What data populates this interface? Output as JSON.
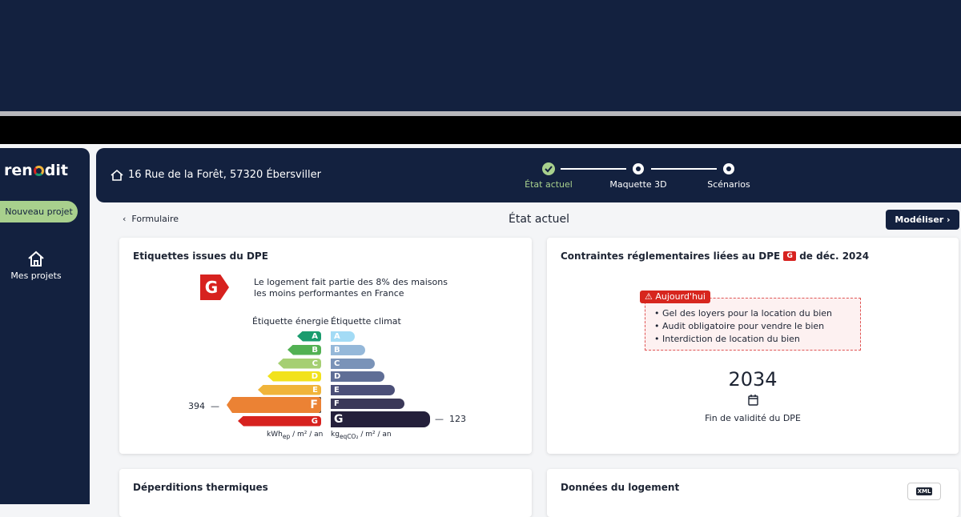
{
  "sidebar": {
    "logo": {
      "prefix": "ren",
      "suffix": "dit"
    },
    "new_project": "Nouveau projet",
    "my_projects": "Mes projets"
  },
  "header": {
    "address": "16 Rue de la Forêt, 57320 Ébersviller",
    "steps": [
      "État actuel",
      "Maquette 3D",
      "Scénarios"
    ]
  },
  "toolbar": {
    "back": "Formulaire",
    "title": "État actuel",
    "button": "Modéliser"
  },
  "dpe_card": {
    "title": "Etiquettes issues du DPE",
    "badge": "G",
    "text": "Le logement fait partie des 8% des maisons les moins performantes en France",
    "energy": {
      "heading": "Étiquette énergie",
      "labels": [
        "A",
        "B",
        "C",
        "D",
        "E",
        "F",
        "G"
      ],
      "colors": [
        "#1a9c6e",
        "#52b153",
        "#a5cf73",
        "#f2e21c",
        "#f0b43a",
        "#eb8234",
        "#d7221f"
      ],
      "highlight": "F",
      "value": "394",
      "unit": {
        "main": "kWh",
        "sub": "ep",
        "rest": " / m² / an"
      }
    },
    "climate": {
      "heading": "Étiquette climat",
      "labels": [
        "A",
        "B",
        "C",
        "D",
        "E",
        "F",
        "G"
      ],
      "colors": [
        "#a3dbf5",
        "#95b8d9",
        "#7a93b8",
        "#5f6e96",
        "#4b4f78",
        "#3a3858",
        "#24203b"
      ],
      "highlight": "G",
      "value": "123",
      "unit": {
        "main": "kg",
        "sub": "eqCO₂",
        "rest": " / m² / an"
      }
    }
  },
  "rules_card": {
    "title": "Contraintes réglementaires liées au DPE",
    "badge": "G",
    "title_suffix": "de déc. 2024",
    "tag": "Aujourd'hui",
    "items": [
      "Gel des loyers pour la location du bien",
      "Audit obligatoire pour vendre le bien",
      "Interdiction de location du bien"
    ],
    "year": "2034",
    "year_caption": "Fin de validité du DPE"
  },
  "losses_card": {
    "title": "Déperditions thermiques"
  },
  "housing_card": {
    "title": "Données du logement",
    "icon_label": "XML"
  }
}
